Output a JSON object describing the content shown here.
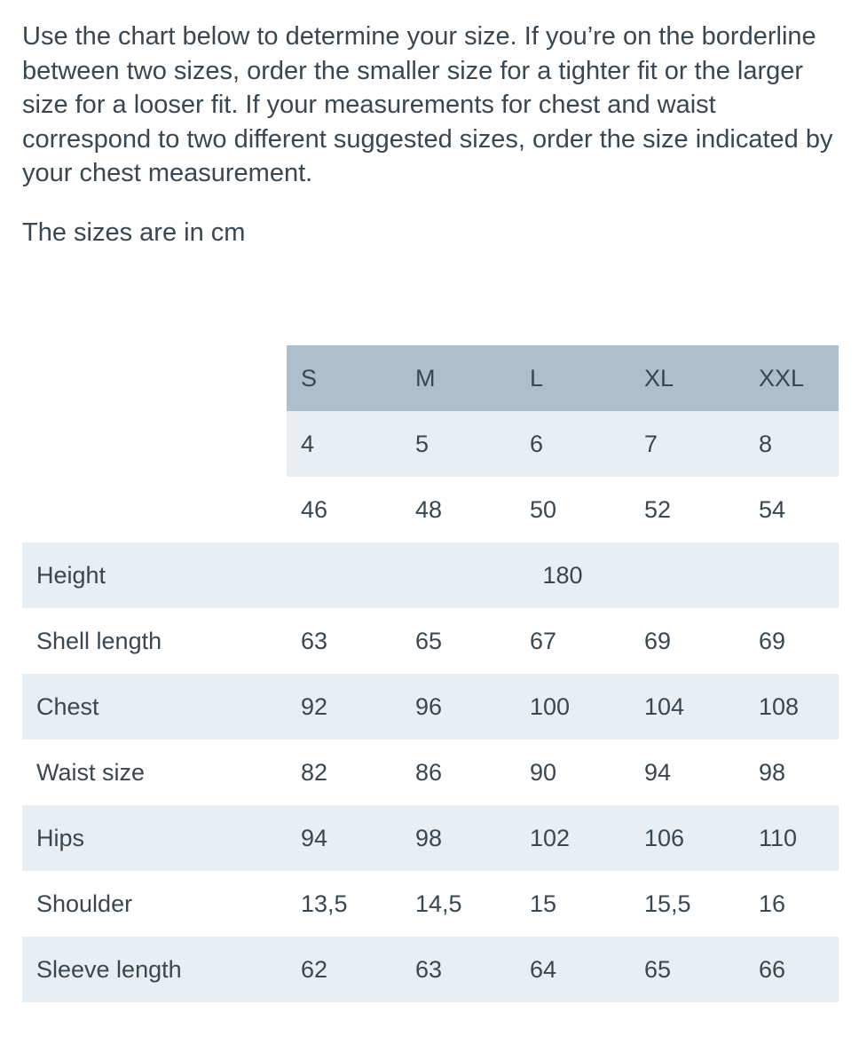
{
  "intro": "Use the chart below to determine your size. If you’re on the borderline between two sizes, order the smaller size for a tighter fit or the larger size for a looser fit. If your measurements for chest and waist correspond to two different suggested sizes, order the size indicated by your chest measurement.",
  "units_note": "The sizes are in cm",
  "table": {
    "header": [
      "S",
      "M",
      "L",
      "XL",
      "XXL"
    ],
    "rows": [
      {
        "cells": [
          "4",
          "5",
          "6",
          "7",
          "8"
        ]
      },
      {
        "cells": [
          "46",
          "48",
          "50",
          "52",
          "54"
        ]
      },
      {
        "label": "Height",
        "cells": [
          "180"
        ]
      },
      {
        "label": "Shell length",
        "cells": [
          "63",
          "65",
          "67",
          "69",
          "69"
        ]
      },
      {
        "label": "Chest",
        "cells": [
          "92",
          "96",
          "100",
          "104",
          "108"
        ]
      },
      {
        "label": "Waist size",
        "cells": [
          "82",
          "86",
          "90",
          "94",
          "98"
        ]
      },
      {
        "label": "Hips",
        "cells": [
          "94",
          "98",
          "102",
          "106",
          "110"
        ]
      },
      {
        "label": "Shoulder",
        "cells": [
          "13,5",
          "14,5",
          "15",
          "15,5",
          "16"
        ]
      },
      {
        "label": "Sleeve length",
        "cells": [
          "62",
          "63",
          "64",
          "65",
          "66"
        ]
      }
    ]
  }
}
